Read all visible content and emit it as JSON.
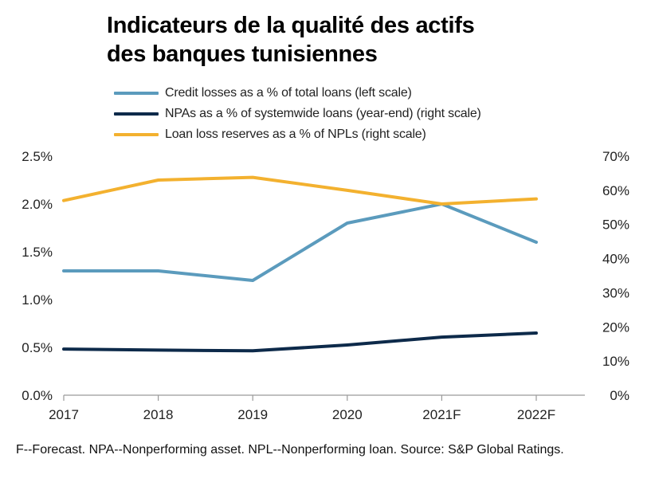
{
  "title_line1": "Indicateurs de la qualité des actifs",
  "title_line2": "des banques tunisiennes",
  "footnote": "F--Forecast. NPA--Nonperforming asset. NPL--Nonperforming loan. Source: S&P Global Ratings.",
  "chart_data": {
    "type": "line",
    "title": "Indicateurs de la qualité des actifs des banques tunisiennes",
    "x": [
      "2017",
      "2018",
      "2019",
      "2020",
      "2021F",
      "2022F"
    ],
    "left_axis": {
      "range": [
        0,
        2.5
      ],
      "ticks": [
        "0.0%",
        "0.5%",
        "1.0%",
        "1.5%",
        "2.0%",
        "2.5%"
      ]
    },
    "right_axis": {
      "range": [
        0,
        70
      ],
      "ticks": [
        "0%",
        "10%",
        "20%",
        "30%",
        "40%",
        "50%",
        "60%",
        "70%"
      ]
    },
    "grid": false,
    "legend_position": "top",
    "series": [
      {
        "name": "Credit losses as a % of total loans (left scale)",
        "axis": "left",
        "color": "#5b9bbd",
        "values": [
          1.3,
          1.3,
          1.2,
          1.8,
          2.0,
          1.6
        ]
      },
      {
        "name": "NPAs as a % of systemwide loans (year-end) (right scale)",
        "axis": "right",
        "color": "#0d2a4a",
        "values": [
          13.5,
          13.2,
          13.0,
          14.7,
          17.0,
          18.2
        ]
      },
      {
        "name": "Loan loss reserves as a % of NPLs (right scale)",
        "axis": "right",
        "color": "#f3b12f",
        "values": [
          57.0,
          63.0,
          63.8,
          60.0,
          56.0,
          57.5
        ]
      }
    ]
  }
}
